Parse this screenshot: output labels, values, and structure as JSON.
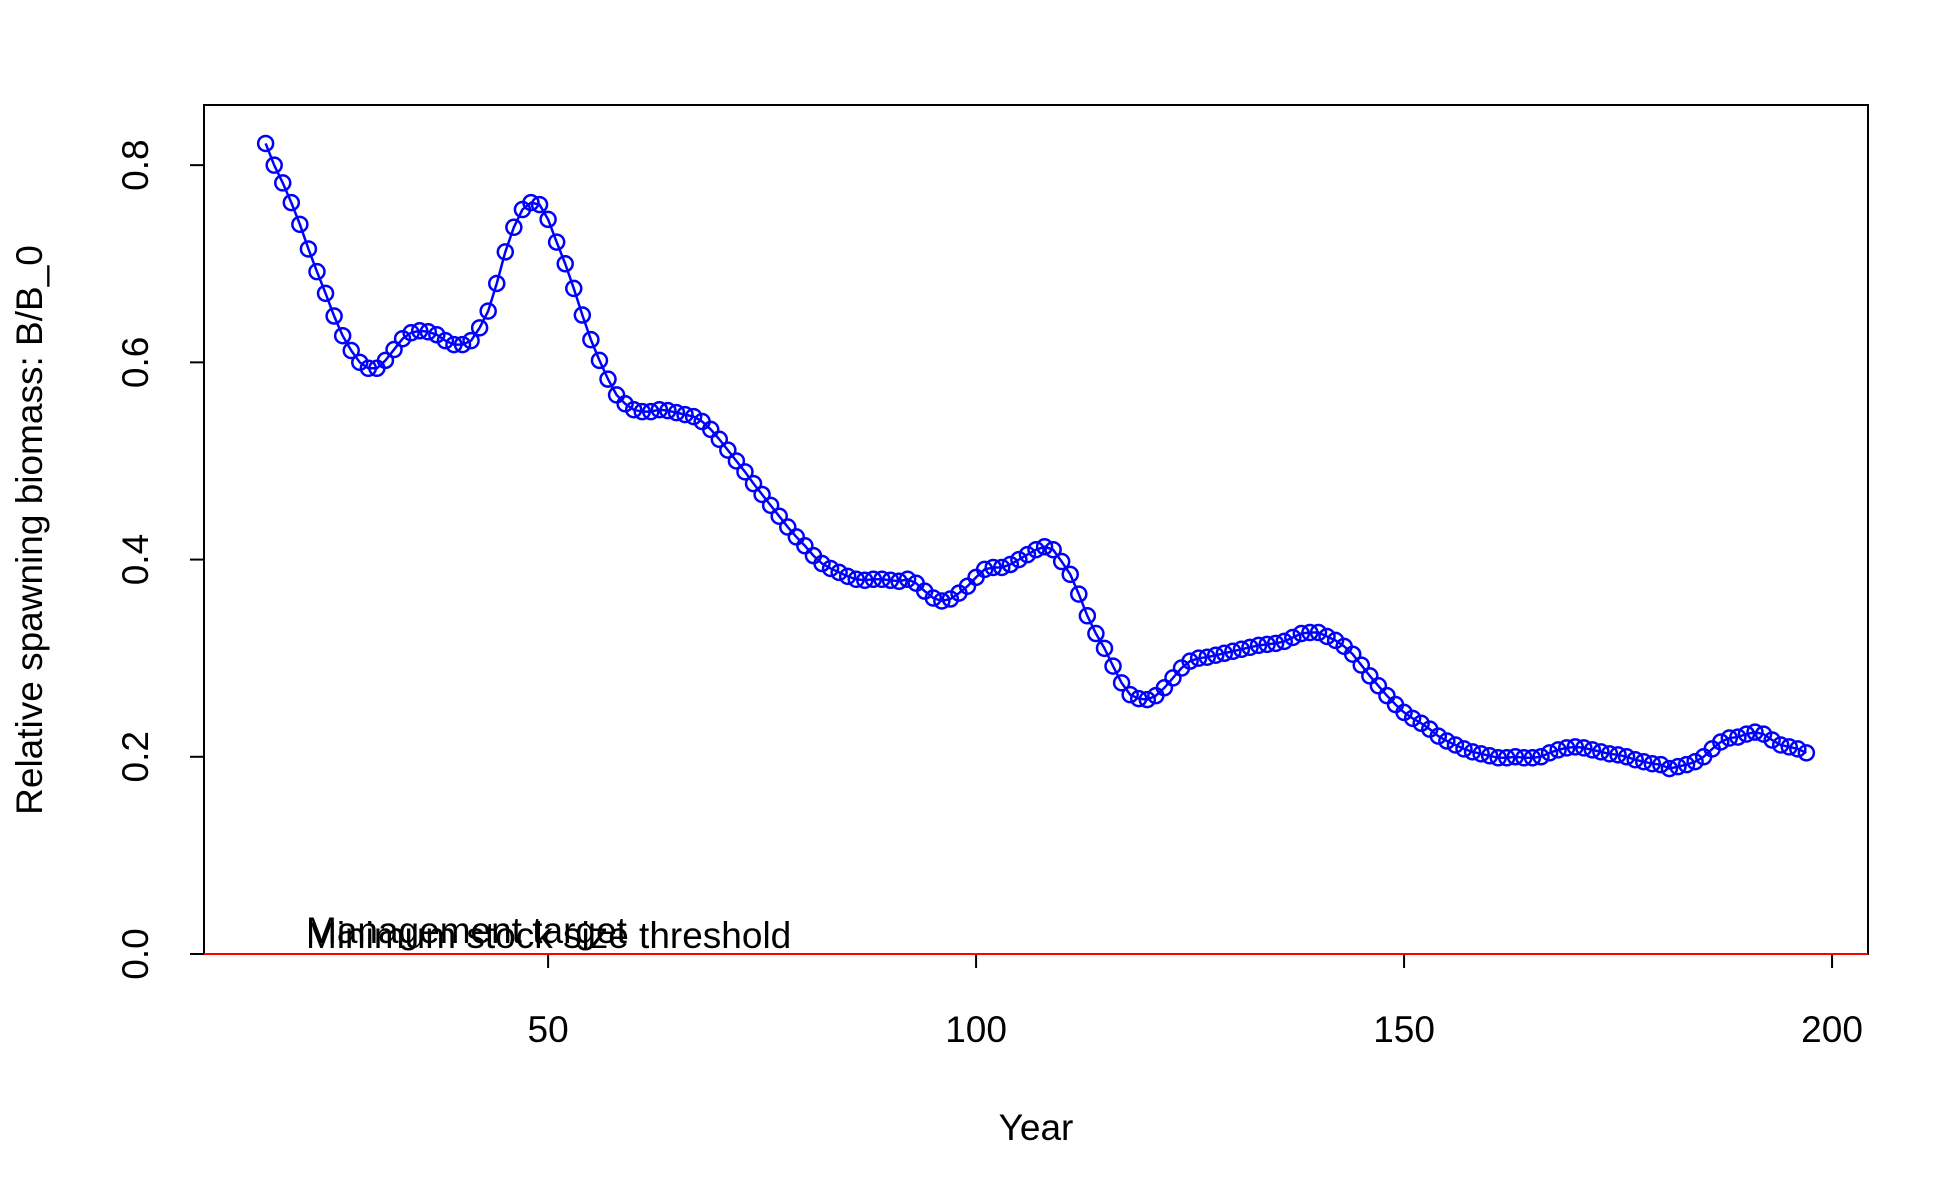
{
  "chart_data": {
    "type": "line",
    "xlabel": "Year",
    "ylabel": "Relative spawning biomass: B/B_0",
    "x": [
      17,
      18,
      19,
      20,
      21,
      22,
      23,
      24,
      25,
      26,
      27,
      28,
      29,
      30,
      31,
      32,
      33,
      34,
      35,
      36,
      37,
      38,
      39,
      40,
      41,
      42,
      43,
      44,
      45,
      46,
      47,
      48,
      49,
      50,
      51,
      52,
      53,
      54,
      55,
      56,
      57,
      58,
      59,
      60,
      61,
      62,
      63,
      64,
      65,
      66,
      67,
      68,
      69,
      70,
      71,
      72,
      73,
      74,
      75,
      76,
      77,
      78,
      79,
      80,
      81,
      82,
      83,
      84,
      85,
      86,
      87,
      88,
      89,
      90,
      91,
      92,
      93,
      94,
      95,
      96,
      97,
      98,
      99,
      100,
      101,
      102,
      103,
      104,
      105,
      106,
      107,
      108,
      109,
      110,
      111,
      112,
      113,
      114,
      115,
      116,
      117,
      118,
      119,
      120,
      121,
      122,
      123,
      124,
      125,
      126,
      127,
      128,
      129,
      130,
      131,
      132,
      133,
      134,
      135,
      136,
      137,
      138,
      139,
      140,
      141,
      142,
      143,
      144,
      145,
      146,
      147,
      148,
      149,
      150,
      151,
      152,
      153,
      154,
      155,
      156,
      157,
      158,
      159,
      160,
      161,
      162,
      163,
      164,
      165,
      166,
      167,
      168,
      169,
      170,
      171,
      172,
      173,
      174,
      175,
      176,
      177,
      178,
      179,
      180,
      181,
      182,
      183,
      184,
      185,
      186,
      187,
      188,
      189,
      190,
      191,
      192,
      193,
      194,
      195,
      196,
      197
    ],
    "series": [
      {
        "color": "#0000ff",
        "values": [
          0.822,
          0.8,
          0.782,
          0.762,
          0.74,
          0.715,
          0.692,
          0.67,
          0.647,
          0.627,
          0.612,
          0.6,
          0.594,
          0.594,
          0.602,
          0.613,
          0.624,
          0.63,
          0.632,
          0.631,
          0.628,
          0.622,
          0.618,
          0.618,
          0.622,
          0.635,
          0.652,
          0.68,
          0.712,
          0.737,
          0.755,
          0.762,
          0.76,
          0.745,
          0.722,
          0.7,
          0.675,
          0.648,
          0.623,
          0.602,
          0.583,
          0.567,
          0.558,
          0.552,
          0.55,
          0.55,
          0.552,
          0.551,
          0.549,
          0.547,
          0.545,
          0.54,
          0.532,
          0.522,
          0.511,
          0.5,
          0.489,
          0.477,
          0.466,
          0.455,
          0.444,
          0.433,
          0.423,
          0.414,
          0.404,
          0.396,
          0.391,
          0.387,
          0.383,
          0.38,
          0.379,
          0.38,
          0.38,
          0.379,
          0.378,
          0.38,
          0.376,
          0.368,
          0.361,
          0.358,
          0.36,
          0.366,
          0.373,
          0.382,
          0.39,
          0.392,
          0.392,
          0.395,
          0.4,
          0.405,
          0.41,
          0.413,
          0.41,
          0.398,
          0.385,
          0.365,
          0.343,
          0.325,
          0.31,
          0.292,
          0.275,
          0.263,
          0.259,
          0.258,
          0.262,
          0.27,
          0.28,
          0.29,
          0.297,
          0.3,
          0.301,
          0.303,
          0.305,
          0.307,
          0.309,
          0.311,
          0.313,
          0.314,
          0.315,
          0.317,
          0.321,
          0.325,
          0.326,
          0.326,
          0.322,
          0.318,
          0.312,
          0.304,
          0.293,
          0.282,
          0.272,
          0.262,
          0.253,
          0.245,
          0.239,
          0.234,
          0.228,
          0.221,
          0.216,
          0.212,
          0.208,
          0.205,
          0.203,
          0.201,
          0.199,
          0.199,
          0.2,
          0.199,
          0.199,
          0.2,
          0.204,
          0.207,
          0.209,
          0.21,
          0.209,
          0.207,
          0.205,
          0.203,
          0.202,
          0.2,
          0.197,
          0.195,
          0.193,
          0.192,
          0.188,
          0.19,
          0.192,
          0.195,
          0.2,
          0.208,
          0.215,
          0.219,
          0.22,
          0.223,
          0.225,
          0.223,
          0.217,
          0.212,
          0.21,
          0.208,
          0.204
        ]
      }
    ],
    "reference_lines": [
      {
        "label": "Minimum stock size threshold",
        "value": 0,
        "color": "#000000"
      },
      {
        "label": "Management target",
        "value": 0,
        "color": "#ff0000"
      }
    ],
    "xlim": [
      9.8,
      204.2
    ],
    "xticks": [
      50,
      100,
      150,
      200
    ],
    "ylim": [
      0,
      0.861
    ],
    "yticks": [
      {
        "value": 0,
        "label": "0.0"
      },
      0.2,
      0.4,
      0.6,
      0.8
    ]
  }
}
